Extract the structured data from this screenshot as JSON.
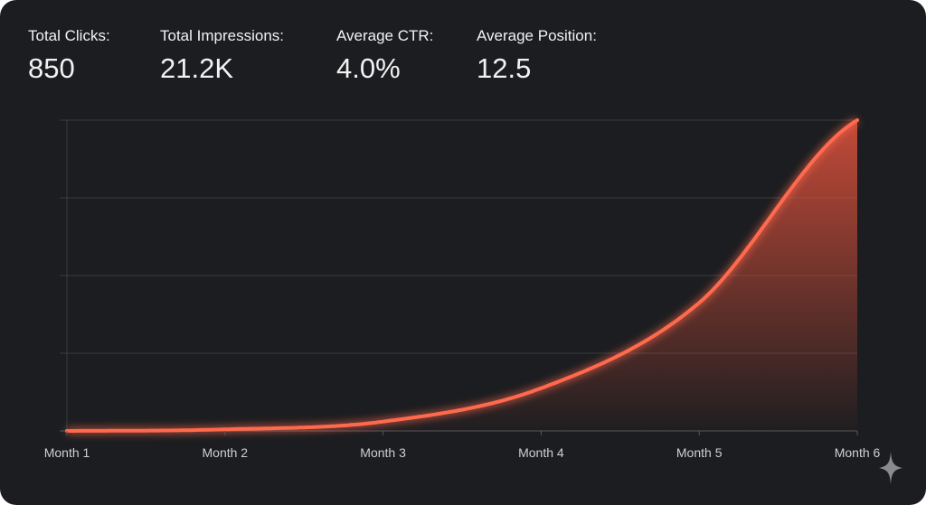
{
  "stats": [
    {
      "label": "Total Clicks:",
      "value": "850"
    },
    {
      "label": "Total Impressions:",
      "value": "21.2K"
    },
    {
      "label": "Average CTR:",
      "value": "4.0%"
    },
    {
      "label": "Average Position:",
      "value": "12.5"
    }
  ],
  "chart_data": {
    "type": "area",
    "title": "",
    "xlabel": "",
    "ylabel": "",
    "categories": [
      "Month 1",
      "Month 2",
      "Month 3",
      "Month 4",
      "Month 5",
      "Month 6"
    ],
    "series": [
      {
        "values": [
          0,
          0.02,
          0.12,
          0.55,
          1.65,
          4
        ]
      }
    ],
    "ylim": [
      0,
      4
    ],
    "grid": true,
    "y_tick_labels_shown": false,
    "line_color": "#ff6a4d",
    "fill_color": "#e0523c"
  },
  "watermark_icon": "sparkle-icon"
}
